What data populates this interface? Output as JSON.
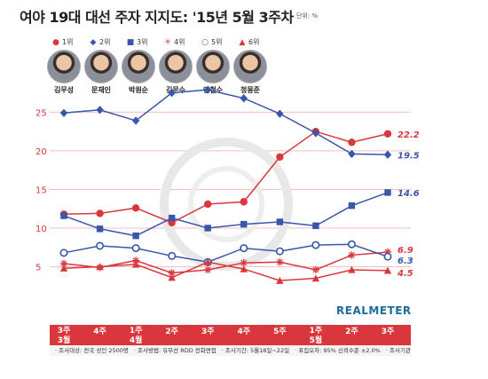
{
  "title": "여야 19대 대선 주자 지지도: '15년 5월 3주차",
  "unit": "단위: %",
  "brand": "REALMETER",
  "colors": {
    "red": "#d9373d",
    "blue": "#3a56a8",
    "grid": "#f0c2c5",
    "axis_tick": "#d9373d"
  },
  "candidates": [
    {
      "rank": "1위",
      "name": "김무성",
      "color": "#d9373d",
      "symbol": "●",
      "icon": "filled-circle-icon"
    },
    {
      "rank": "2위",
      "name": "문재인",
      "color": "#3a56a8",
      "symbol": "◆",
      "icon": "filled-diamond-icon"
    },
    {
      "rank": "3위",
      "name": "박원순",
      "color": "#3a56a8",
      "symbol": "■",
      "icon": "filled-square-icon"
    },
    {
      "rank": "4위",
      "name": "김문수",
      "color": "#d9373d",
      "symbol": "✳",
      "icon": "asterisk-icon"
    },
    {
      "rank": "5위",
      "name": "안철수",
      "color": "#3a56a8",
      "symbol": "○",
      "icon": "open-circle-icon"
    },
    {
      "rank": "6위",
      "name": "정몽준",
      "color": "#d9373d",
      "symbol": "▲",
      "icon": "filled-triangle-icon"
    }
  ],
  "footer": [
    "· 조사대상: 전국 성인 2500명",
    "· 조사방법: 유무선 RDD 전화면접",
    "· 조사기간: 5월18일~22일",
    "· 표집오차: 95% 신뢰수준 ±2.0%",
    "· 조사기관: 리얼미터"
  ],
  "chart_data": {
    "type": "line",
    "title": "여야 19대 대선 주자 지지도: '15년 5월 3주차",
    "categories": [
      "3주\n3월",
      "4주",
      "1주\n4월",
      "2주",
      "3주",
      "4주",
      "5주",
      "1주\n5월",
      "2주",
      "3주"
    ],
    "ylim": [
      0,
      27
    ],
    "yticks": [
      5,
      10,
      15,
      20,
      25
    ],
    "grid": true,
    "series": [
      {
        "name": "김무성",
        "marker": "circle",
        "color": "#d9373d",
        "values": [
          11.8,
          11.9,
          12.6,
          10.7,
          13.1,
          13.4,
          19.2,
          22.5,
          21.1,
          22.2
        ],
        "end_label": "22.2"
      },
      {
        "name": "문재인",
        "marker": "diamond",
        "color": "#3a56a8",
        "values": [
          24.9,
          25.3,
          23.9,
          27.5,
          27.9,
          26.8,
          24.8,
          22.3,
          19.6,
          19.5
        ],
        "end_label": "19.5"
      },
      {
        "name": "박원순",
        "marker": "square",
        "color": "#3a56a8",
        "values": [
          11.6,
          9.9,
          9.0,
          11.3,
          10.0,
          10.5,
          10.8,
          10.3,
          12.9,
          14.6
        ],
        "end_label": "14.6"
      },
      {
        "name": "김문수",
        "marker": "asterisk",
        "color": "#d9373d",
        "values": [
          5.4,
          4.9,
          5.8,
          4.2,
          4.6,
          5.5,
          5.6,
          4.6,
          6.5,
          6.9
        ],
        "end_label": "6.9"
      },
      {
        "name": "안철수",
        "marker": "open-circle",
        "color": "#3a56a8",
        "values": [
          6.8,
          7.7,
          7.4,
          6.4,
          5.6,
          7.4,
          7.0,
          7.8,
          7.9,
          6.3
        ],
        "end_label": "6.3"
      },
      {
        "name": "정몽준",
        "marker": "triangle",
        "color": "#d9373d",
        "values": [
          4.8,
          5.0,
          5.3,
          3.6,
          5.6,
          4.7,
          3.2,
          3.5,
          4.6,
          4.5
        ],
        "end_label": "4.5"
      }
    ]
  }
}
